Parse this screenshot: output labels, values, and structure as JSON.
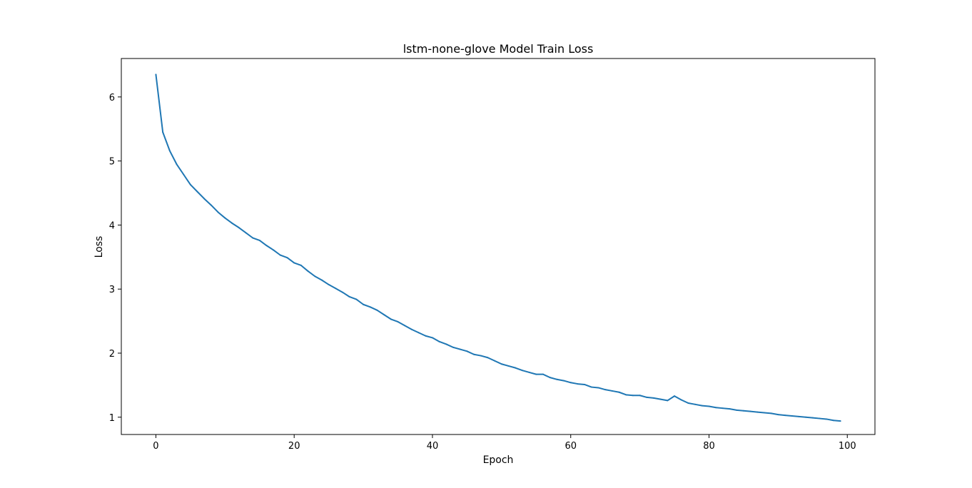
{
  "chart_data": {
    "type": "line",
    "title": "lstm-none-glove Model Train Loss",
    "xlabel": "Epoch",
    "ylabel": "Loss",
    "xlim": [
      -5,
      104
    ],
    "ylim": [
      0.73,
      6.6
    ],
    "xticks": [
      0,
      20,
      40,
      60,
      80,
      100
    ],
    "yticks": [
      1,
      2,
      3,
      4,
      5,
      6
    ],
    "grid": false,
    "legend": "none",
    "series": [
      {
        "name": "train loss",
        "color": "#1f77b4",
        "x": [
          0,
          1,
          2,
          3,
          4,
          5,
          6,
          7,
          8,
          9,
          10,
          11,
          12,
          13,
          14,
          15,
          16,
          17,
          18,
          19,
          20,
          21,
          22,
          23,
          24,
          25,
          26,
          27,
          28,
          29,
          30,
          31,
          32,
          33,
          34,
          35,
          36,
          37,
          38,
          39,
          40,
          41,
          42,
          43,
          44,
          45,
          46,
          47,
          48,
          49,
          50,
          51,
          52,
          53,
          54,
          55,
          56,
          57,
          58,
          59,
          60,
          61,
          62,
          63,
          64,
          65,
          66,
          67,
          68,
          69,
          70,
          71,
          72,
          73,
          74,
          75,
          76,
          77,
          78,
          79,
          80,
          81,
          82,
          83,
          84,
          85,
          86,
          87,
          88,
          89,
          90,
          91,
          92,
          93,
          94,
          95,
          96,
          97,
          98,
          99
        ],
        "values": [
          6.35,
          5.45,
          5.16,
          4.95,
          4.79,
          4.63,
          4.52,
          4.41,
          4.31,
          4.2,
          4.11,
          4.03,
          3.96,
          3.88,
          3.8,
          3.76,
          3.68,
          3.61,
          3.53,
          3.49,
          3.41,
          3.37,
          3.28,
          3.2,
          3.14,
          3.07,
          3.01,
          2.95,
          2.88,
          2.84,
          2.76,
          2.72,
          2.67,
          2.6,
          2.53,
          2.49,
          2.43,
          2.37,
          2.32,
          2.27,
          2.24,
          2.18,
          2.14,
          2.09,
          2.06,
          2.03,
          1.98,
          1.96,
          1.93,
          1.88,
          1.83,
          1.8,
          1.77,
          1.73,
          1.7,
          1.67,
          1.67,
          1.62,
          1.59,
          1.57,
          1.54,
          1.52,
          1.51,
          1.47,
          1.46,
          1.43,
          1.41,
          1.39,
          1.35,
          1.34,
          1.34,
          1.31,
          1.3,
          1.28,
          1.26,
          1.33,
          1.27,
          1.22,
          1.2,
          1.18,
          1.17,
          1.15,
          1.14,
          1.13,
          1.11,
          1.1,
          1.09,
          1.08,
          1.07,
          1.06,
          1.04,
          1.03,
          1.02,
          1.01,
          1.0,
          0.99,
          0.98,
          0.97,
          0.95,
          0.94
        ]
      }
    ]
  }
}
